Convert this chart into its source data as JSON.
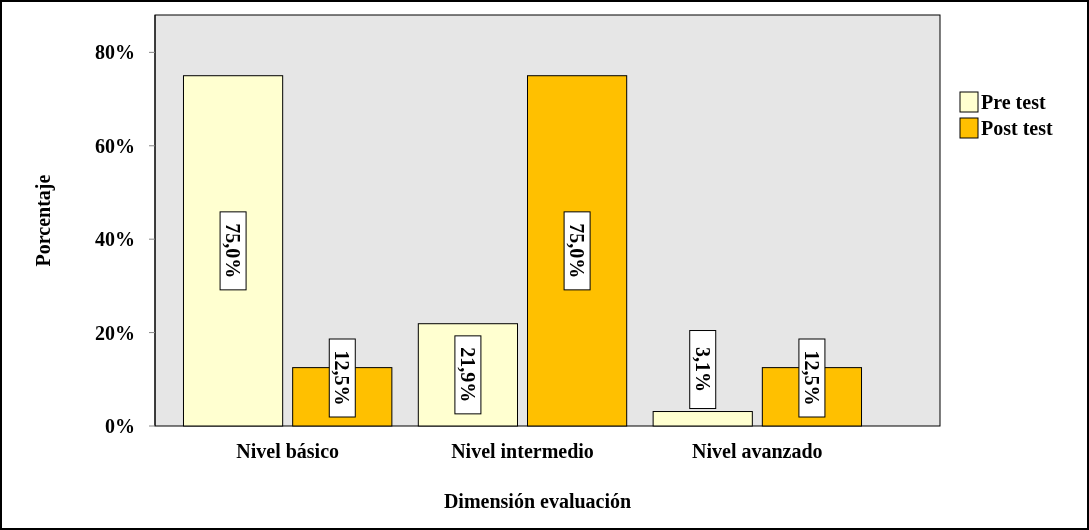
{
  "chart_data": {
    "type": "bar",
    "xlabel": "Dimensión evaluación",
    "ylabel": "Porcentaje",
    "categories": [
      "Nivel básico",
      "Nivel intermedio",
      "Nivel avanzado"
    ],
    "series": [
      {
        "name": "Pre test",
        "color": "#ffffd0",
        "values": [
          75.0,
          21.9,
          3.1
        ],
        "value_labels": [
          "75,0%",
          "21,9%",
          "3,1%"
        ]
      },
      {
        "name": "Post test",
        "color": "#ffc000",
        "values": [
          12.5,
          75.0,
          12.5
        ],
        "value_labels": [
          "12,5%",
          "75,0%",
          "12,5%"
        ]
      }
    ],
    "ylim": [
      0,
      88
    ],
    "yticks": [
      {
        "value": 0,
        "label": "0%"
      },
      {
        "value": 20,
        "label": "20%"
      },
      {
        "value": 40,
        "label": "40%"
      },
      {
        "value": 60,
        "label": "60%"
      },
      {
        "value": 80,
        "label": "80%"
      }
    ],
    "legend": "right",
    "grid": false
  }
}
